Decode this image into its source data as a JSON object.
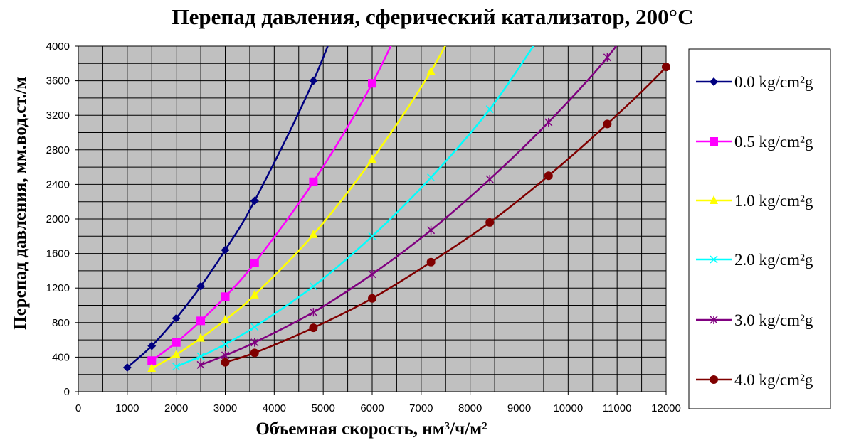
{
  "chart_data": {
    "type": "line",
    "title": "Перепад давления, сферический катализатор, 200°C",
    "xlabel": "Объемная скорость, нм³/ч/м²",
    "ylabel": "Перепад давления, мм.вод.ст./м",
    "xlim": [
      0,
      12000
    ],
    "ylim": [
      0,
      4000
    ],
    "x_ticks": [
      "0",
      "1000",
      "2000",
      "3000",
      "4000",
      "5000",
      "6000",
      "7000",
      "8000",
      "9000",
      "10000",
      "11000",
      "12000"
    ],
    "y_ticks": [
      "0",
      "400",
      "800",
      "1200",
      "1600",
      "2000",
      "2400",
      "2800",
      "3200",
      "3600",
      "4000"
    ],
    "grid": true,
    "legend_position": "right",
    "plot_background": "#c0c0c0",
    "series": [
      {
        "name": "0.0 kg/cm²g",
        "color": "#000080",
        "marker": "diamond",
        "x": [
          1000,
          1500,
          2000,
          2500,
          3000,
          3600,
          4800
        ],
        "y": [
          280,
          530,
          850,
          1220,
          1640,
          2210,
          3600
        ]
      },
      {
        "name": "0.5 kg/cm²g",
        "color": "#ff00ff",
        "marker": "square",
        "x": [
          1500,
          2000,
          2500,
          3000,
          3600,
          4800,
          6000
        ],
        "y": [
          360,
          570,
          820,
          1100,
          1490,
          2430,
          3570
        ]
      },
      {
        "name": "1.0 kg/cm²g",
        "color": "#ffff00",
        "marker": "triangle",
        "x": [
          1500,
          2000,
          2500,
          3000,
          3600,
          4800,
          6000,
          7200
        ],
        "y": [
          270,
          430,
          620,
          830,
          1120,
          1820,
          2690,
          3710
        ]
      },
      {
        "name": "2.0 kg/cm²g",
        "color": "#00ffff",
        "marker": "x",
        "x": [
          2000,
          2500,
          3000,
          3600,
          4800,
          6000,
          7200,
          8400
        ],
        "y": [
          290,
          410,
          550,
          750,
          1220,
          1800,
          2480,
          3270
        ]
      },
      {
        "name": "3.0 kg/cm²g",
        "color": "#800080",
        "marker": "star",
        "x": [
          2500,
          3000,
          3600,
          4800,
          6000,
          7200,
          8400,
          9600,
          10800
        ],
        "y": [
          310,
          420,
          570,
          920,
          1360,
          1870,
          2460,
          3120,
          3870
        ]
      },
      {
        "name": "4.0 kg/cm²g",
        "color": "#800000",
        "marker": "circle",
        "x": [
          3000,
          3600,
          4800,
          6000,
          7200,
          8400,
          9600,
          10800,
          12000
        ],
        "y": [
          340,
          450,
          740,
          1080,
          1500,
          1960,
          2500,
          3100,
          3760
        ]
      }
    ]
  }
}
